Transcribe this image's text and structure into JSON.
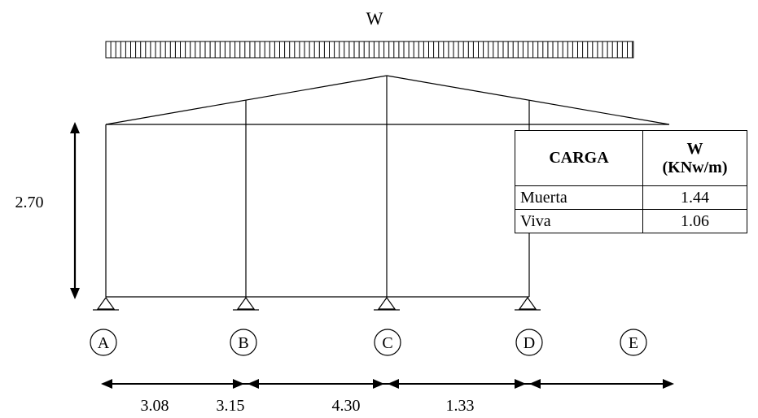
{
  "load_label": "W",
  "height_label": "2.70",
  "axes": [
    "A",
    "B",
    "C",
    "D",
    "E"
  ],
  "span_labels": [
    "3.08",
    "3.15",
    "4.30",
    "1.33"
  ],
  "table": {
    "col1_header": "CARGA",
    "col2_header_line1": "W",
    "col2_header_line2": "(KNw/m)",
    "rows": [
      {
        "type": "Muerta",
        "value": "1.44"
      },
      {
        "type": "Viva",
        "value": "1.06"
      }
    ]
  }
}
